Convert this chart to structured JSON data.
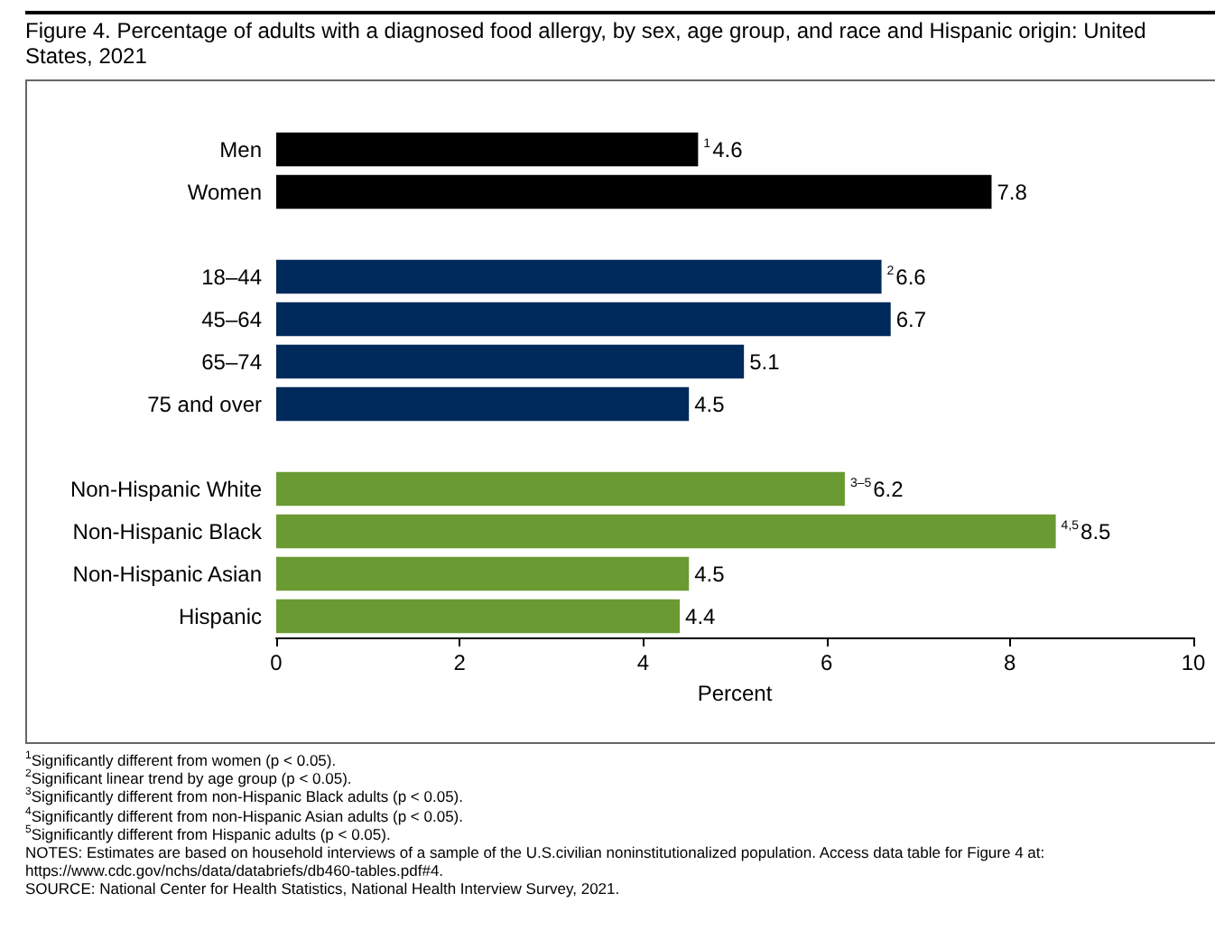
{
  "chart_data": {
    "type": "bar",
    "orientation": "horizontal",
    "title": "Figure 4. Percentage of adults with a diagnosed food allergy, by sex, age group, and race and Hispanic origin: United States, 2021",
    "xlabel": "Percent",
    "categories": [
      "Men",
      "Women",
      null,
      "18–44",
      "45–64",
      "65–74",
      "75 and over",
      null,
      "Non-Hispanic White",
      "Non-Hispanic Black",
      "Non-Hispanic Asian",
      "Hispanic"
    ],
    "values": [
      4.6,
      7.8,
      null,
      6.6,
      6.7,
      5.1,
      4.5,
      null,
      6.2,
      8.5,
      4.5,
      4.4
    ],
    "value_labels": [
      "$^{1}$4.6",
      "7.8",
      null,
      "$^{2}$6.6",
      "6.7",
      "5.1",
      "4.5",
      null,
      "$^{3–5}$6.2",
      "$^{4,5}$8.5",
      "4.5",
      "4.4"
    ],
    "colors": [
      "#000000",
      "#000000",
      null,
      "#002a5c",
      "#002a5c",
      "#002a5c",
      "#002a5c",
      null,
      "#6a9a32",
      "#6a9a32",
      "#6a9a32",
      "#6a9a32"
    ],
    "xlim": [
      0,
      10
    ],
    "xticks": [
      0,
      2,
      4,
      6,
      8,
      10
    ],
    "annotations": [
      "$^{1}$Significantly different from women (p < 0.05).",
      "$^{2}$Significant linear trend by age group (p < 0.05).",
      "$^{3}$Significantly different from non-Hispanic Black adults (p < 0.05).",
      "$^{4}$Significantly different from non-Hispanic Asian adults (p < 0.05).",
      "$^{5}$Significantly different from Hispanic adults (p < 0.05).",
      "NOTES: Estimates are based on household interviews of a sample of the U.S.civilian noninstitutionalized population. Access data table for Figure 4 at: https://www.cdc.gov/nchs/data/databriefs/db460-tables.pdf#4.",
      "SOURCE: National Center for Health Statistics, National Health Interview Survey, 2021."
    ]
  }
}
